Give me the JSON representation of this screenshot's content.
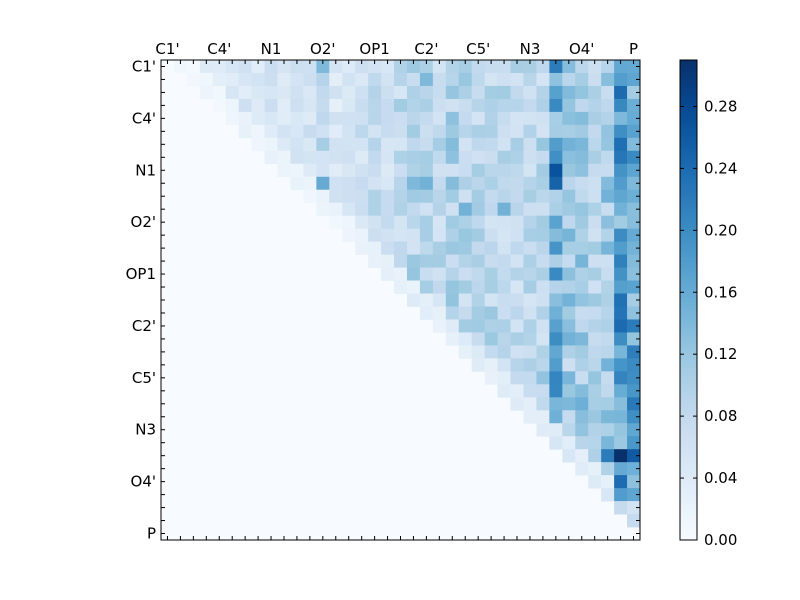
{
  "chart_data": {
    "type": "heatmap",
    "title": "",
    "xlabel": "",
    "ylabel": "",
    "n": 37,
    "x_tick_labels": [
      "C1'",
      "C4'",
      "N1",
      "O2'",
      "OP1",
      "C2'",
      "C5'",
      "N3",
      "O4'",
      "P"
    ],
    "y_tick_labels": [
      "C1'",
      "C4'",
      "N1",
      "O2'",
      "OP1",
      "C2'",
      "C5'",
      "N3",
      "O4'",
      "P"
    ],
    "tick_positions": [
      0,
      4,
      8,
      12,
      16,
      20,
      24,
      28,
      32,
      36
    ],
    "x_tick_placement": "top",
    "colormap": "Blues",
    "vmin": 0.0,
    "vmax": 0.31,
    "colorbar": {
      "placement": "right",
      "ticks": [
        "0.00",
        "0.04",
        "0.08",
        "0.12",
        "0.16",
        "0.20",
        "0.24",
        "0.28"
      ]
    },
    "lower_triangle": "zero",
    "column_profile": [
      0.04,
      0.03,
      0.02,
      0.04,
      0.03,
      0.05,
      0.06,
      0.05,
      0.06,
      0.05,
      0.06,
      0.06,
      0.09,
      0.05,
      0.06,
      0.07,
      0.08,
      0.07,
      0.09,
      0.1,
      0.09,
      0.09,
      0.11,
      0.1,
      0.1,
      0.1,
      0.09,
      0.09,
      0.09,
      0.1,
      0.17,
      0.12,
      0.13,
      0.1,
      0.12,
      0.2,
      0.18
    ],
    "highlights": [
      {
        "row": 9,
        "col": 12,
        "value": 0.16
      },
      {
        "row": 0,
        "col": 12,
        "value": 0.14
      },
      {
        "row": 8,
        "col": 30,
        "value": 0.27
      },
      {
        "row": 9,
        "col": 30,
        "value": 0.25
      },
      {
        "row": 0,
        "col": 30,
        "value": 0.22
      },
      {
        "row": 30,
        "col": 35,
        "value": 0.31
      },
      {
        "row": 30,
        "col": 36,
        "value": 0.26
      },
      {
        "row": 30,
        "col": 34,
        "value": 0.22
      },
      {
        "row": 20,
        "col": 35,
        "value": 0.24
      },
      {
        "row": 20,
        "col": 36,
        "value": 0.22
      },
      {
        "row": 21,
        "col": 35,
        "value": 0.2
      },
      {
        "row": 23,
        "col": 35,
        "value": 0.19
      },
      {
        "row": 24,
        "col": 35,
        "value": 0.21
      },
      {
        "row": 33,
        "col": 35,
        "value": 0.18
      },
      {
        "row": 9,
        "col": 20,
        "value": 0.15
      },
      {
        "row": 9,
        "col": 19,
        "value": 0.14
      },
      {
        "row": 1,
        "col": 20,
        "value": 0.14
      },
      {
        "row": 11,
        "col": 23,
        "value": 0.15
      },
      {
        "row": 11,
        "col": 26,
        "value": 0.15
      }
    ]
  }
}
